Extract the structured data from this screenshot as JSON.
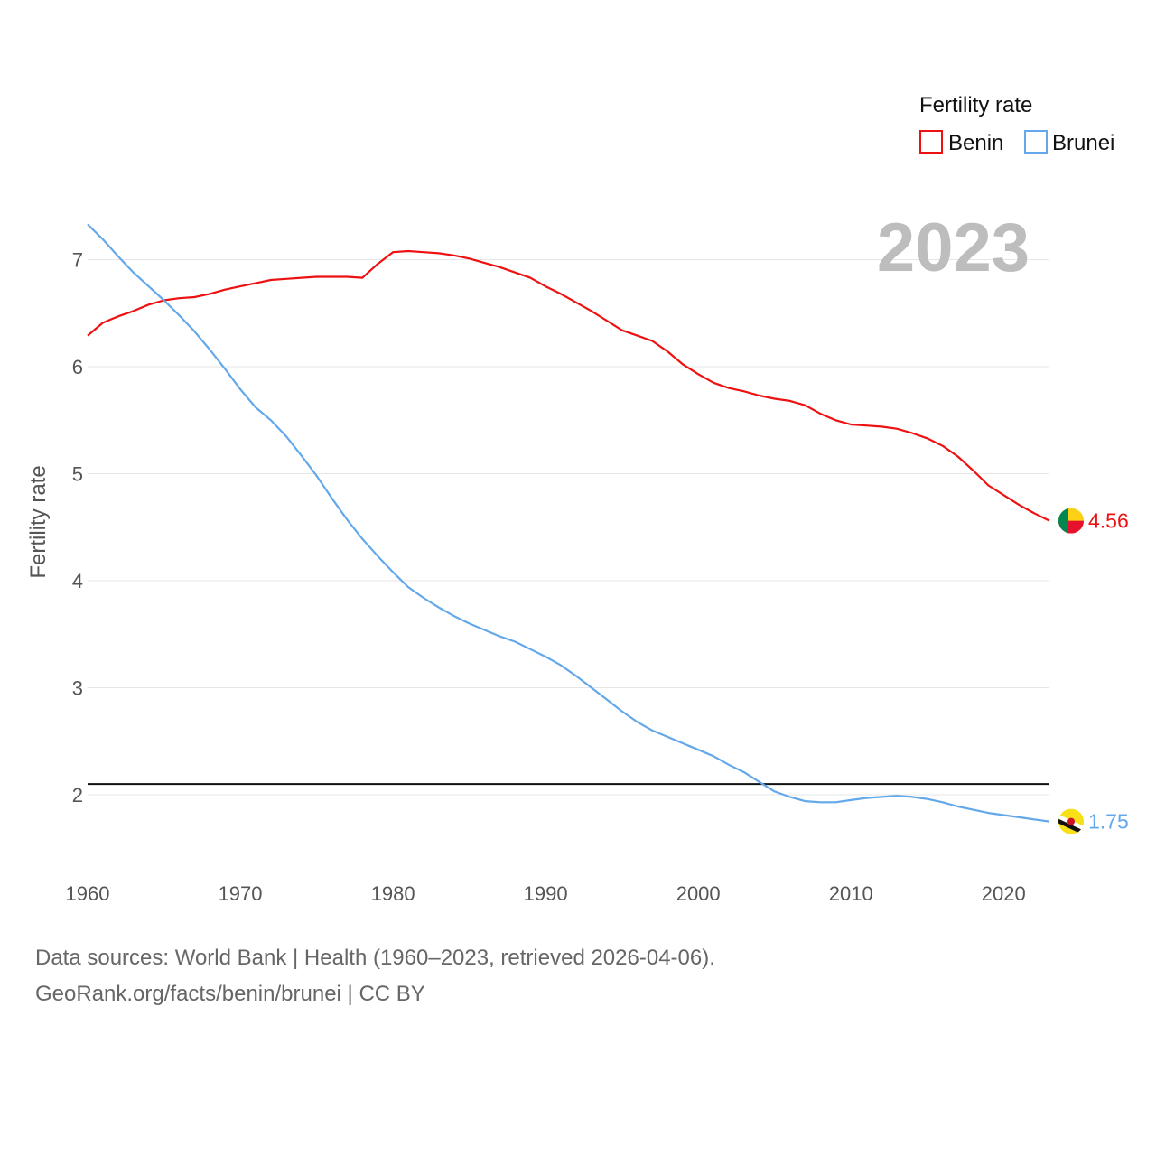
{
  "chart_data": {
    "type": "line",
    "ylabel": "Fertility rate",
    "xlabel": "",
    "legend_title": "Fertility rate",
    "legend_position": "top-right",
    "year_stamp": "2023",
    "xlim": [
      1960,
      2023
    ],
    "ylim": [
      1.35,
      7.5
    ],
    "x_ticks": [
      1960,
      1970,
      1980,
      1990,
      2000,
      2010,
      2020
    ],
    "y_ticks": [
      2,
      3,
      4,
      5,
      6,
      7
    ],
    "grid": true,
    "reference_line": {
      "y": 2.1
    },
    "x": [
      1960,
      1961,
      1962,
      1963,
      1964,
      1965,
      1966,
      1967,
      1968,
      1969,
      1970,
      1971,
      1972,
      1973,
      1974,
      1975,
      1976,
      1977,
      1978,
      1979,
      1980,
      1981,
      1982,
      1983,
      1984,
      1985,
      1986,
      1987,
      1988,
      1989,
      1990,
      1991,
      1992,
      1993,
      1994,
      1995,
      1996,
      1997,
      1998,
      1999,
      2000,
      2001,
      2002,
      2003,
      2004,
      2005,
      2006,
      2007,
      2008,
      2009,
      2010,
      2011,
      2012,
      2013,
      2014,
      2015,
      2016,
      2017,
      2018,
      2019,
      2020,
      2021,
      2022,
      2023
    ],
    "series": [
      {
        "name": "Benin",
        "color": "#ee1111",
        "end_label": "4.56",
        "flag_icon": "benin-flag-icon",
        "values": [
          6.29,
          6.41,
          6.47,
          6.52,
          6.58,
          6.62,
          6.64,
          6.65,
          6.68,
          6.72,
          6.75,
          6.78,
          6.81,
          6.82,
          6.83,
          6.84,
          6.84,
          6.84,
          6.83,
          6.96,
          7.07,
          7.08,
          7.07,
          7.06,
          7.04,
          7.01,
          6.97,
          6.93,
          6.88,
          6.83,
          6.75,
          6.68,
          6.6,
          6.52,
          6.43,
          6.34,
          6.29,
          6.24,
          6.14,
          6.02,
          5.93,
          5.85,
          5.8,
          5.77,
          5.73,
          5.7,
          5.68,
          5.64,
          5.56,
          5.5,
          5.46,
          5.45,
          5.44,
          5.42,
          5.38,
          5.33,
          5.26,
          5.16,
          5.03,
          4.89,
          4.8,
          4.71,
          4.63,
          4.56
        ]
      },
      {
        "name": "Brunei",
        "color": "#62a8ea",
        "end_label": "1.75",
        "flag_icon": "brunei-flag-icon",
        "values": [
          7.33,
          7.19,
          7.03,
          6.88,
          6.75,
          6.62,
          6.48,
          6.33,
          6.16,
          5.98,
          5.79,
          5.62,
          5.5,
          5.35,
          5.17,
          4.98,
          4.77,
          4.57,
          4.39,
          4.23,
          4.08,
          3.94,
          3.84,
          3.75,
          3.67,
          3.6,
          3.54,
          3.48,
          3.43,
          3.36,
          3.29,
          3.21,
          3.11,
          3.0,
          2.89,
          2.78,
          2.68,
          2.6,
          2.54,
          2.48,
          2.42,
          2.36,
          2.28,
          2.21,
          2.12,
          2.03,
          1.98,
          1.94,
          1.93,
          1.93,
          1.95,
          1.97,
          1.98,
          1.99,
          1.98,
          1.96,
          1.93,
          1.89,
          1.86,
          1.83,
          1.81,
          1.79,
          1.77,
          1.75
        ]
      }
    ]
  },
  "source": {
    "line1": "Data sources: World Bank | Health (1960–2023, retrieved 2026-04-06).",
    "line2": "GeoRank.org/facts/benin/brunei | CC BY"
  }
}
